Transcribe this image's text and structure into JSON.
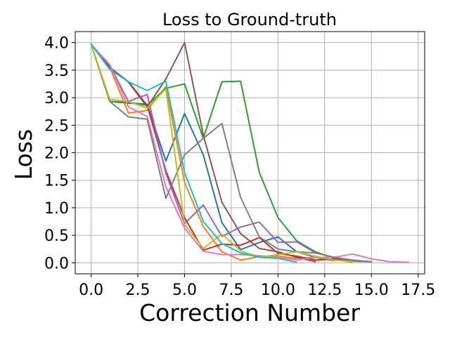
{
  "chart_data": {
    "type": "line",
    "title": "Loss to Ground-truth",
    "xlabel": "Correction Number",
    "ylabel": "Loss",
    "xlim": [
      -0.85,
      17.85
    ],
    "ylim": [
      -0.2,
      4.2
    ],
    "xticks": [
      0,
      2.5,
      5,
      7.5,
      10,
      12.5,
      15,
      17.5
    ],
    "xtick_labels": [
      "0.0",
      "2.5",
      "5.0",
      "7.5",
      "10.0",
      "12.5",
      "15.0",
      "17.5"
    ],
    "yticks": [
      0,
      0.5,
      1,
      1.5,
      2,
      2.5,
      3,
      3.5,
      4
    ],
    "ytick_labels": [
      "0.0",
      "0.5",
      "1.0",
      "1.5",
      "2.0",
      "2.5",
      "3.0",
      "3.5",
      "4.0"
    ],
    "grid": true,
    "legend": "none",
    "series": [
      {
        "color": "#1f77b4",
        "x": [
          0,
          1,
          2,
          3,
          4,
          5,
          6,
          7,
          8,
          9,
          10,
          11,
          12,
          13
        ],
        "y": [
          3.97,
          2.93,
          2.9,
          2.88,
          1.85,
          2.71,
          1.96,
          0.73,
          0.24,
          0.37,
          0.47,
          0.2,
          0.1,
          0.04
        ]
      },
      {
        "color": "#ff7f0e",
        "x": [
          0,
          1,
          2,
          3,
          4,
          5,
          6,
          7,
          8,
          9,
          10,
          11,
          12,
          13,
          14
        ],
        "y": [
          3.97,
          3.55,
          2.72,
          2.77,
          3.2,
          1.46,
          0.66,
          0.2,
          0.05,
          0.11,
          0.12,
          0.08,
          0.1,
          0.06,
          0.01
        ]
      },
      {
        "color": "#2ca02c",
        "x": [
          0,
          1,
          2,
          3,
          4,
          5,
          6,
          7,
          8,
          9,
          10,
          11,
          12,
          13,
          14,
          15
        ],
        "y": [
          3.97,
          2.93,
          2.92,
          2.86,
          3.17,
          3.25,
          2.26,
          3.29,
          3.3,
          1.64,
          0.82,
          0.4,
          0.2,
          0.08,
          0.03,
          0.02
        ]
      },
      {
        "color": "#d62728",
        "x": [
          0,
          1,
          2,
          3,
          4,
          5,
          6,
          7,
          8,
          9,
          10,
          11,
          12,
          13,
          14
        ],
        "y": [
          3.97,
          3.55,
          3.29,
          2.86,
          1.67,
          0.82,
          0.23,
          0.34,
          0.32,
          0.46,
          0.17,
          0.12,
          0.05,
          0.07,
          0.02
        ]
      },
      {
        "color": "#9467bd",
        "x": [
          0,
          1,
          2,
          3,
          4,
          5,
          6,
          7,
          8,
          9,
          10,
          11,
          12,
          13,
          14,
          15
        ],
        "y": [
          3.97,
          3.59,
          2.93,
          3.06,
          1.62,
          0.71,
          1.05,
          0.48,
          0.65,
          0.74,
          0.37,
          0.38,
          0.18,
          0.1,
          0.04,
          0.02
        ]
      },
      {
        "color": "#8c564b",
        "x": [
          0,
          1,
          2,
          3,
          4,
          5,
          6,
          7,
          8,
          9,
          10,
          11,
          12
        ],
        "y": [
          3.97,
          3.55,
          3.28,
          2.83,
          3.34,
          4.0,
          2.32,
          1.1,
          0.53,
          0.26,
          0.2,
          0.1,
          0.02
        ]
      },
      {
        "color": "#e377c2",
        "x": [
          0,
          1,
          2,
          3,
          4,
          5,
          6,
          7,
          8,
          9,
          10,
          11,
          12,
          13,
          14,
          15,
          16,
          17
        ],
        "y": [
          3.97,
          3.6,
          2.83,
          2.66,
          1.38,
          0.63,
          0.21,
          0.15,
          0.15,
          0.13,
          0.1,
          0.05,
          0.1,
          0.1,
          0.16,
          0.07,
          0.02,
          0.01
        ]
      },
      {
        "color": "#7f7f7f",
        "x": [
          0,
          1,
          2,
          3,
          4,
          5,
          6,
          7,
          8,
          9,
          10,
          11,
          12,
          13,
          14,
          15
        ],
        "y": [
          3.97,
          2.93,
          2.65,
          2.61,
          1.17,
          1.96,
          2.26,
          2.53,
          1.19,
          0.47,
          0.25,
          0.2,
          0.18,
          0.1,
          0.05,
          0.02
        ]
      },
      {
        "color": "#bcbd22",
        "x": [
          0,
          1,
          2,
          3,
          4,
          5,
          6,
          7,
          8,
          9,
          10,
          11,
          12,
          13,
          14
        ],
        "y": [
          3.97,
          2.97,
          2.93,
          2.81,
          3.16,
          0.7,
          0.26,
          0.52,
          0.22,
          0.1,
          0.15,
          0.2,
          0.12,
          0.05,
          0.02
        ]
      },
      {
        "color": "#17becf",
        "x": [
          0,
          1,
          2,
          3,
          4,
          5,
          6,
          7,
          8,
          9,
          10,
          11
        ],
        "y": [
          3.97,
          3.51,
          3.29,
          3.13,
          3.3,
          1.64,
          0.75,
          0.35,
          0.18,
          0.1,
          0.08,
          0.01
        ]
      }
    ]
  }
}
